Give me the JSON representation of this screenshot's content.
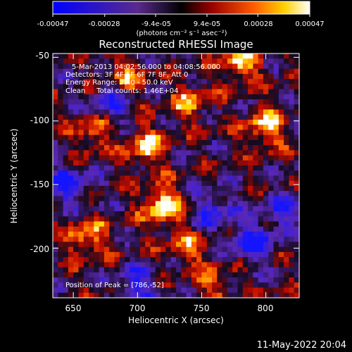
{
  "chart_data": {
    "type": "heatmap",
    "title": "Reconstructed RHESSI Image",
    "xlabel": "Heliocentric X (arcsec)",
    "ylabel": "Heliocentric Y (arcsec)",
    "xlim": [
      634,
      826
    ],
    "ylim": [
      -239,
      -47
    ],
    "x_ticks": [
      "650",
      "700",
      "750",
      "800"
    ],
    "x_tick_values": [
      650,
      700,
      750,
      800
    ],
    "y_ticks": [
      "-50",
      "-100",
      "-150",
      "-200"
    ],
    "y_tick_values": [
      -50,
      -100,
      -150,
      -200
    ],
    "colorbar": {
      "range": [
        -0.00047,
        0.00047
      ],
      "tick_labels": [
        "-0.00047",
        "-0.00028",
        "-9.4e-05",
        "9.4e-05",
        "0.00028",
        "0.00047"
      ],
      "tick_values": [
        -0.00047,
        -0.00028,
        -9.4e-05,
        9.4e-05,
        0.00028,
        0.00047
      ],
      "unit_label": "(photons cm⁻² s⁻¹ asec⁻²)"
    },
    "annotations": [
      "5-Mar-2013 04:02:56.000 to 04:08:56.000",
      "Detectors: 3F 4F 5F 6F 7F 8F, Att 0",
      "Energy Range: 25.0 - 50.0 keV",
      "Clean     Total counts: 1.46E+04"
    ],
    "peak_label": "Position of Peak = [786,-52]",
    "peak_position": [
      786,
      -52
    ],
    "grid": false,
    "bright_sources": [
      {
        "x": 720,
        "y": -166,
        "intensity": 1.0
      },
      {
        "x": 706,
        "y": -120,
        "intensity": 0.8
      },
      {
        "x": 780,
        "y": -55,
        "intensity": 0.85
      },
      {
        "x": 800,
        "y": -105,
        "intensity": 0.8
      },
      {
        "x": 660,
        "y": -192,
        "intensity": 0.75
      },
      {
        "x": 690,
        "y": -66,
        "intensity": 0.65
      },
      {
        "x": 740,
        "y": -85,
        "intensity": 0.6
      },
      {
        "x": 740,
        "y": -200,
        "intensity": 0.55
      },
      {
        "x": 665,
        "y": -110,
        "intensity": 0.6
      },
      {
        "x": 760,
        "y": -230,
        "intensity": 0.5
      }
    ],
    "dim_regions": [
      {
        "x": 645,
        "y": -150,
        "intensity": -0.8
      },
      {
        "x": 700,
        "y": -230,
        "intensity": -0.7
      },
      {
        "x": 790,
        "y": -195,
        "intensity": -0.85
      },
      {
        "x": 760,
        "y": -170,
        "intensity": -0.7
      },
      {
        "x": 680,
        "y": -85,
        "intensity": -0.7
      },
      {
        "x": 815,
        "y": -170,
        "intensity": -0.6
      }
    ]
  },
  "footer": {
    "date": "11-May-2022 20:04"
  }
}
